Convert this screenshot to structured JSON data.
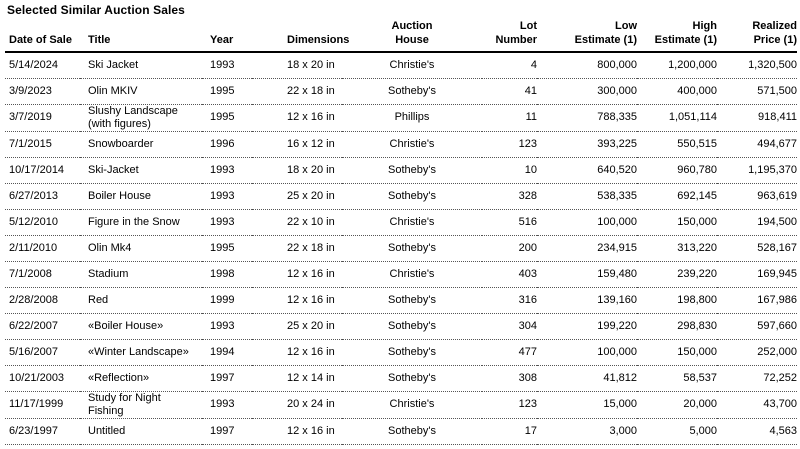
{
  "page": {
    "title": "Selected Similar Auction Sales"
  },
  "table": {
    "columns": [
      {
        "id": "date-of-sale",
        "label_lines": [
          "Date of Sale"
        ]
      },
      {
        "id": "title",
        "label_lines": [
          "Title"
        ]
      },
      {
        "id": "year",
        "label_lines": [
          "Year"
        ]
      },
      {
        "id": "dimensions",
        "label_lines": [
          "Dimensions"
        ]
      },
      {
        "id": "auction-house",
        "label_lines": [
          "Auction",
          "House"
        ]
      },
      {
        "id": "lot-number",
        "label_lines": [
          "Lot",
          "Number"
        ]
      },
      {
        "id": "low-estimate",
        "label_lines": [
          "Low",
          "Estimate (1)"
        ]
      },
      {
        "id": "high-estimate",
        "label_lines": [
          "High",
          "Estimate (1)"
        ]
      },
      {
        "id": "realized-price",
        "label_lines": [
          "Realized",
          "Price (1)"
        ]
      }
    ],
    "rows": [
      {
        "cells": [
          "5/14/2024",
          "Ski Jacket",
          "1993",
          "18 x 20 in",
          "Christie's",
          "4",
          "800,000",
          "1,200,000",
          "1,320,500"
        ]
      },
      {
        "cells": [
          "3/9/2023",
          "Olin MKIV",
          "1995",
          "22 x 18 in",
          "Sotheby's",
          "41",
          "300,000",
          "400,000",
          "571,500"
        ]
      },
      {
        "cells": [
          "3/7/2019",
          "Slushy Landscape (with figures)",
          "1995",
          "12 x 16 in",
          "Phillips",
          "11",
          "788,335",
          "1,051,114",
          "918,411"
        ]
      },
      {
        "cells": [
          "7/1/2015",
          "Snowboarder",
          "1996",
          "16 x 12 in",
          "Christie's",
          "123",
          "393,225",
          "550,515",
          "494,677"
        ]
      },
      {
        "cells": [
          "10/17/2014",
          "Ski-Jacket",
          "1993",
          "18 x 20 in",
          "Sotheby's",
          "10",
          "640,520",
          "960,780",
          "1,195,370"
        ]
      },
      {
        "cells": [
          "6/27/2013",
          "Boiler House",
          "1993",
          "25 x 20 in",
          "Sotheby's",
          "328",
          "538,335",
          "692,145",
          "963,619"
        ]
      },
      {
        "cells": [
          "5/12/2010",
          "Figure in the Snow",
          "1993",
          "22 x 10 in",
          "Christie's",
          "516",
          "100,000",
          "150,000",
          "194,500"
        ]
      },
      {
        "cells": [
          "2/11/2010",
          "Olin Mk4",
          "1995",
          "22 x 18 in",
          "Sotheby's",
          "200",
          "234,915",
          "313,220",
          "528,167"
        ]
      },
      {
        "cells": [
          "7/1/2008",
          "Stadium",
          "1998",
          "12 x 16 in",
          "Christie's",
          "403",
          "159,480",
          "239,220",
          "169,945"
        ]
      },
      {
        "cells": [
          "2/28/2008",
          "Red",
          "1999",
          "12 x 16 in",
          "Sotheby's",
          "316",
          "139,160",
          "198,800",
          "167,986"
        ]
      },
      {
        "cells": [
          "6/22/2007",
          "«Boiler House»",
          "1993",
          "25 x 20 in",
          "Sotheby's",
          "304",
          "199,220",
          "298,830",
          "597,660"
        ]
      },
      {
        "cells": [
          "5/16/2007",
          "«Winter Landscape»",
          "1994",
          "12 x 16 in",
          "Sotheby's",
          "477",
          "100,000",
          "150,000",
          "252,000"
        ]
      },
      {
        "cells": [
          "10/21/2003",
          "«Reflection»",
          "1997",
          "12 x 14 in",
          "Sotheby's",
          "308",
          "41,812",
          "58,537",
          "72,252"
        ]
      },
      {
        "cells": [
          "11/17/1999",
          "Study for Night Fishing",
          "1993",
          "20 x 24 in",
          "Christie's",
          "123",
          "15,000",
          "20,000",
          "43,700"
        ]
      },
      {
        "cells": [
          "6/23/1997",
          "Untitled",
          "1997",
          "12 x 16 in",
          "Sotheby's",
          "17",
          "3,000",
          "5,000",
          "4,563"
        ]
      }
    ]
  }
}
